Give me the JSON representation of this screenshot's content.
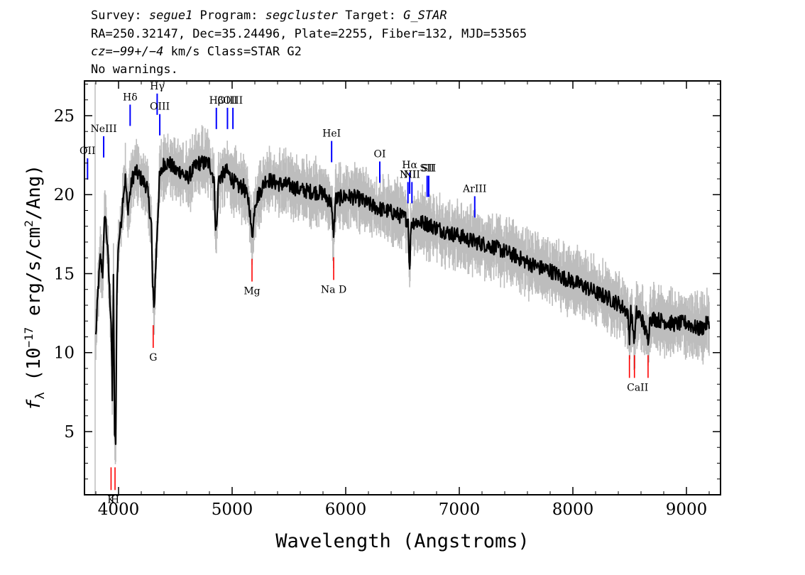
{
  "header": {
    "line1_prefix": "Survey: ",
    "survey": "segue1",
    "line1_mid": " Program: ",
    "program": "segcluster",
    "line1_mid2": " Target: ",
    "target": "G_STAR",
    "line2": "RA=250.32147, Dec=35.24496, Plate=2255, Fiber=132, MJD=53565",
    "line3_cz": "cz=−99+/−4",
    "line3_rest": " km/s Class=STAR G2",
    "line4": "No warnings."
  },
  "chart_data": {
    "type": "line",
    "xlabel": "Wavelength (Angstroms)",
    "ylabel": "f_λ (10^-17 erg/s/cm^2/Ang)",
    "xlim": [
      3700,
      9300
    ],
    "ylim": [
      1,
      27.2
    ],
    "xticks": [
      4000,
      5000,
      6000,
      7000,
      8000,
      9000
    ],
    "yticks": [
      5,
      10,
      15,
      20,
      25
    ],
    "series": [
      {
        "color": "#000000",
        "points": [
          [
            3800,
            11
          ],
          [
            3820,
            14
          ],
          [
            3840,
            16
          ],
          [
            3860,
            15
          ],
          [
            3880,
            19
          ],
          [
            3900,
            17
          ],
          [
            3920,
            14
          ],
          [
            3935,
            12
          ],
          [
            3945,
            7
          ],
          [
            3955,
            15
          ],
          [
            3965,
            5
          ],
          [
            3975,
            4
          ],
          [
            3985,
            14
          ],
          [
            4000,
            17
          ],
          [
            4020,
            18
          ],
          [
            4040,
            20
          ],
          [
            4060,
            21
          ],
          [
            4080,
            19
          ],
          [
            4100,
            20
          ],
          [
            4120,
            21
          ],
          [
            4150,
            21.5
          ],
          [
            4200,
            21
          ],
          [
            4250,
            20.5
          ],
          [
            4290,
            18
          ],
          [
            4300,
            14
          ],
          [
            4315,
            13
          ],
          [
            4330,
            16
          ],
          [
            4360,
            21
          ],
          [
            4400,
            22
          ],
          [
            4450,
            22
          ],
          [
            4500,
            21.5
          ],
          [
            4550,
            21.5
          ],
          [
            4600,
            21
          ],
          [
            4650,
            21.5
          ],
          [
            4700,
            22
          ],
          [
            4750,
            22
          ],
          [
            4800,
            22
          ],
          [
            4840,
            21
          ],
          [
            4855,
            18
          ],
          [
            4865,
            18
          ],
          [
            4880,
            21
          ],
          [
            4950,
            21.5
          ],
          [
            5000,
            21
          ],
          [
            5050,
            20.5
          ],
          [
            5100,
            20.5
          ],
          [
            5150,
            19.5
          ],
          [
            5167,
            17.8
          ],
          [
            5175,
            17.6
          ],
          [
            5185,
            17.8
          ],
          [
            5200,
            19.5
          ],
          [
            5300,
            21
          ],
          [
            5400,
            20.7
          ],
          [
            5500,
            20.6
          ],
          [
            5600,
            20.3
          ],
          [
            5700,
            20.2
          ],
          [
            5800,
            20.1
          ],
          [
            5870,
            19.5
          ],
          [
            5890,
            17.8
          ],
          [
            5896,
            17.6
          ],
          [
            5910,
            19.7
          ],
          [
            6000,
            19.9
          ],
          [
            6100,
            19.8
          ],
          [
            6200,
            19.4
          ],
          [
            6300,
            19.1
          ],
          [
            6400,
            18.9
          ],
          [
            6500,
            18.6
          ],
          [
            6550,
            18.4
          ],
          [
            6563,
            15
          ],
          [
            6575,
            18.2
          ],
          [
            6600,
            18.3
          ],
          [
            6700,
            18.2
          ],
          [
            6800,
            17.9
          ],
          [
            6900,
            17.6
          ],
          [
            7000,
            17.4
          ],
          [
            7100,
            17.1
          ],
          [
            7200,
            16.9
          ],
          [
            7300,
            16.7
          ],
          [
            7400,
            16.4
          ],
          [
            7500,
            16.1
          ],
          [
            7600,
            15.7
          ],
          [
            7700,
            15.4
          ],
          [
            7800,
            15.2
          ],
          [
            7900,
            14.8
          ],
          [
            8000,
            14.5
          ],
          [
            8100,
            14.2
          ],
          [
            8200,
            13.8
          ],
          [
            8300,
            13.5
          ],
          [
            8400,
            13.1
          ],
          [
            8480,
            12.6
          ],
          [
            8498,
            11
          ],
          [
            8510,
            12.6
          ],
          [
            8542,
            10.8
          ],
          [
            8560,
            12.5
          ],
          [
            8600,
            12.3
          ],
          [
            8662,
            10.8
          ],
          [
            8680,
            12.2
          ],
          [
            8800,
            12
          ],
          [
            8900,
            11.8
          ],
          [
            9000,
            11.9
          ],
          [
            9100,
            11.5
          ],
          [
            9150,
            11.6
          ],
          [
            9200,
            12
          ]
        ]
      }
    ],
    "annotations": {
      "emission_color": "#0000ff",
      "absorption_color": "#ff0000",
      "emission": [
        {
          "label": "OII",
          "x": 3727,
          "y": 22.3
        },
        {
          "label": "NeIII",
          "x": 3869,
          "y": 23.7
        },
        {
          "label": "Hδ",
          "x": 4102,
          "y": 25.7
        },
        {
          "label": "Hγ",
          "x": 4340,
          "y": 26.4
        },
        {
          "label": "OIII",
          "x": 4363,
          "y": 25.1
        },
        {
          "label": "Hβ",
          "x": 4861,
          "y": 25.5
        },
        {
          "label": "OIII",
          "x": 4959,
          "y": 25.5
        },
        {
          "label": "OIII",
          "x": 5007,
          "y": 25.5
        },
        {
          "label": "HeI",
          "x": 5876,
          "y": 23.4
        },
        {
          "label": "OI",
          "x": 6300,
          "y": 22.1
        },
        {
          "label": "NII",
          "x": 6548,
          "y": 20.8
        },
        {
          "label": "Hα",
          "x": 6563,
          "y": 21.4
        },
        {
          "label": "NII",
          "x": 6583,
          "y": 20.8
        },
        {
          "label": "SII",
          "x": 6717,
          "y": 21.2
        },
        {
          "label": "SII",
          "x": 6731,
          "y": 21.2
        },
        {
          "label": "ArIII",
          "x": 7136,
          "y": 19.9
        }
      ],
      "absorption": [
        {
          "label": "K",
          "x": 3934,
          "y": 1.3
        },
        {
          "label": "H",
          "x": 3969,
          "y": 1.3
        },
        {
          "label": "G",
          "x": 4305,
          "y": 10.3
        },
        {
          "label": "Mg",
          "x": 5175,
          "y": 14.5
        },
        {
          "label": "Na D",
          "x": 5894,
          "y": 14.6
        },
        {
          "label": "CaII",
          "x": 8498,
          "y": 8.4
        },
        {
          "label": "CaII",
          "x": 8542,
          "y": 8.4
        },
        {
          "label": "CaII",
          "x": 8662,
          "y": 8.4
        }
      ]
    }
  }
}
